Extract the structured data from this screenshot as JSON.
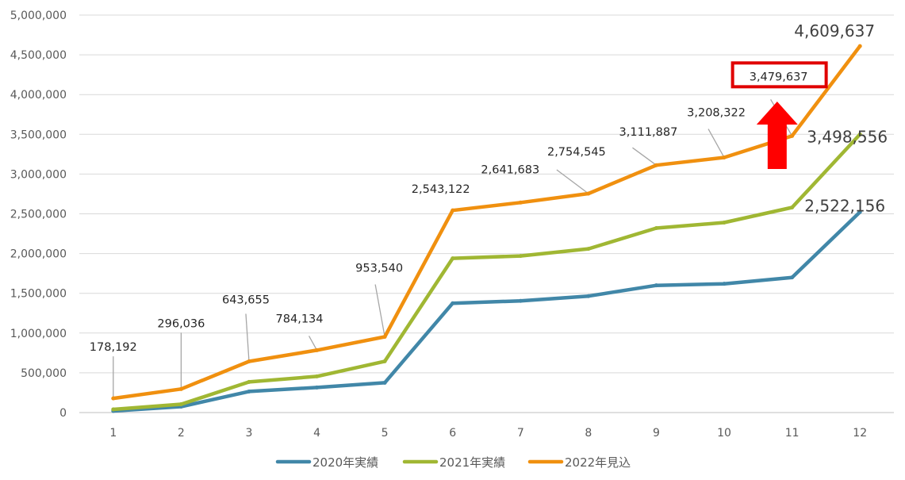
{
  "chart_data": {
    "type": "line",
    "title": "",
    "xlabel": "",
    "ylabel": "",
    "categories": [
      "1",
      "2",
      "3",
      "4",
      "5",
      "6",
      "7",
      "8",
      "9",
      "10",
      "11",
      "12"
    ],
    "ylim": [
      0,
      5000000
    ],
    "y_ticks": [
      0,
      500000,
      1000000,
      1500000,
      2000000,
      2500000,
      3000000,
      3500000,
      4000000,
      4500000,
      5000000
    ],
    "y_tick_labels": [
      "0",
      "500,000",
      "1,000,000",
      "1,500,000",
      "2,000,000",
      "2,500,000",
      "3,000,000",
      "3,500,000",
      "4,000,000",
      "4,500,000",
      "5,000,000"
    ],
    "grid": "horizontal",
    "legend_position": "bottom",
    "series": [
      {
        "name": "2020年実績",
        "color": "#4187A8",
        "values": [
          20000,
          75000,
          265000,
          315000,
          375000,
          1375000,
          1405000,
          1465000,
          1600000,
          1620000,
          1700000,
          2522156
        ]
      },
      {
        "name": "2021年実績",
        "color": "#A0B733",
        "values": [
          40000,
          105000,
          385000,
          455000,
          645000,
          1940000,
          1970000,
          2060000,
          2320000,
          2390000,
          2580000,
          3498556
        ]
      },
      {
        "name": "2022年見込",
        "color": "#F0900F",
        "values": [
          178192,
          296036,
          643655,
          784134,
          953540,
          2543122,
          2641683,
          2754545,
          3111887,
          3208322,
          3479637,
          4609637
        ]
      }
    ],
    "data_labels": [
      {
        "series": 2,
        "index": 0,
        "text": "178,192"
      },
      {
        "series": 2,
        "index": 1,
        "text": "296,036"
      },
      {
        "series": 2,
        "index": 2,
        "text": "643,655"
      },
      {
        "series": 2,
        "index": 3,
        "text": "784,134"
      },
      {
        "series": 2,
        "index": 4,
        "text": "953,540"
      },
      {
        "series": 2,
        "index": 5,
        "text": "2,543,122"
      },
      {
        "series": 2,
        "index": 6,
        "text": "2,641,683"
      },
      {
        "series": 2,
        "index": 7,
        "text": "2,754,545"
      },
      {
        "series": 2,
        "index": 8,
        "text": "3,111,887"
      },
      {
        "series": 2,
        "index": 9,
        "text": "3,208,322"
      },
      {
        "series": 2,
        "index": 10,
        "text": "3,479,637",
        "highlighted": true
      },
      {
        "series": 2,
        "index": 11,
        "text": "4,609,637",
        "large": true
      },
      {
        "series": 1,
        "index": 11,
        "text": "3,498,556",
        "large": true
      },
      {
        "series": 0,
        "index": 11,
        "text": "2,522,156",
        "large": true
      }
    ],
    "annotations": [
      {
        "type": "highlight-box",
        "color": "#E00000",
        "target": "3,479,637"
      },
      {
        "type": "up-arrow",
        "color": "#FF0000"
      }
    ]
  }
}
